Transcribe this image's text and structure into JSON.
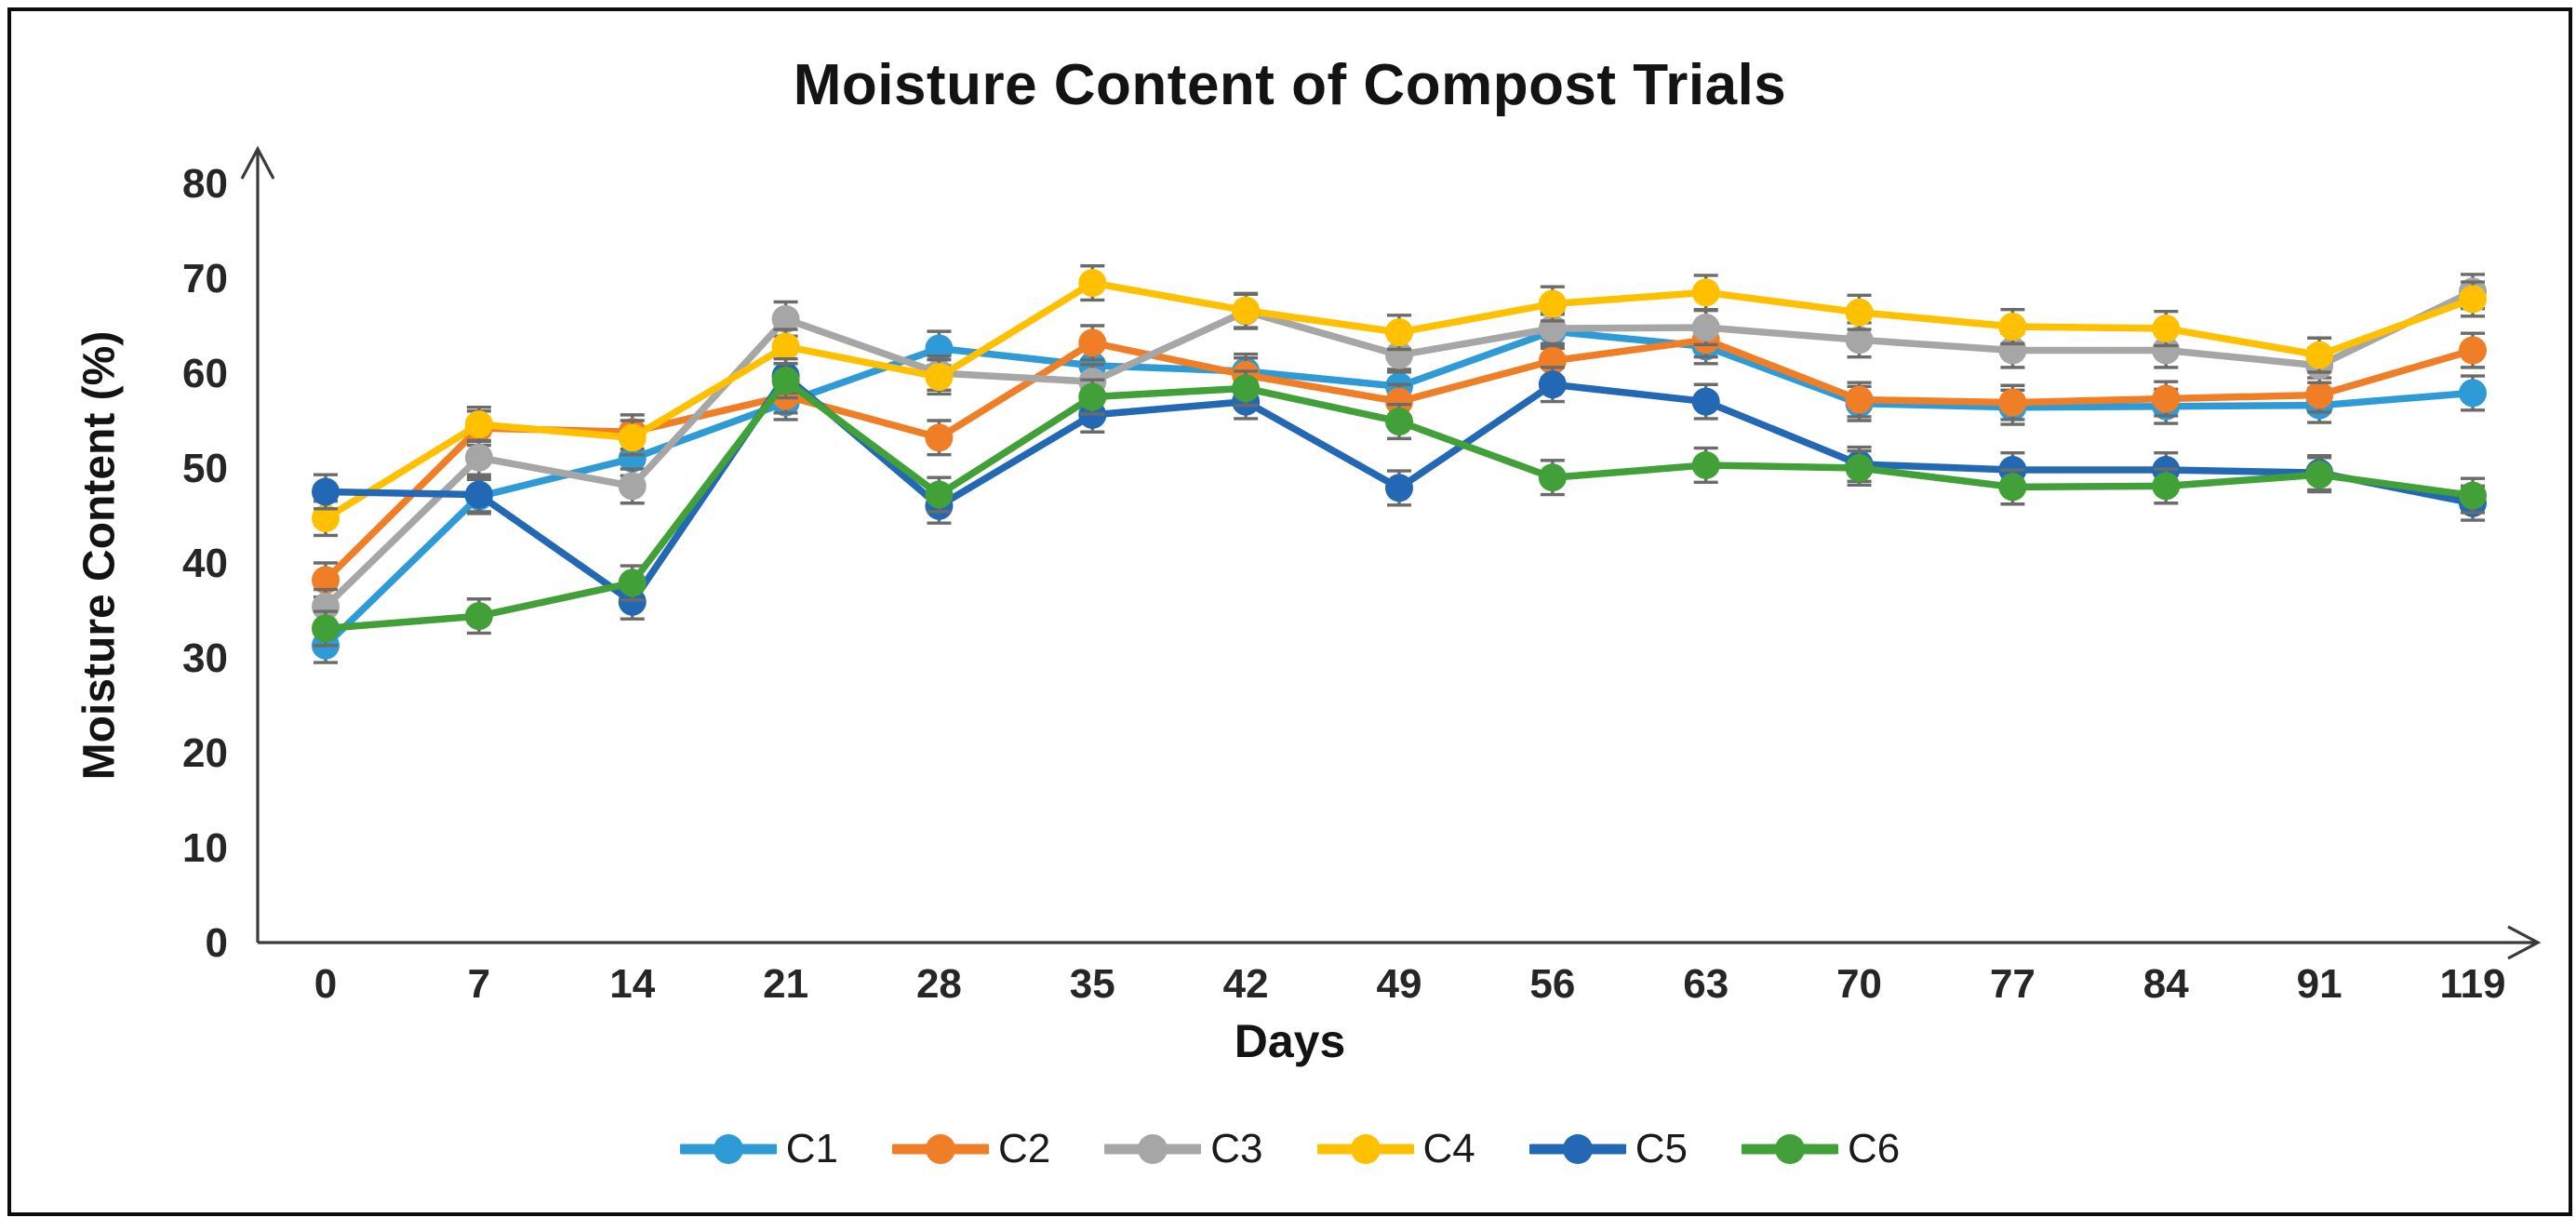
{
  "chart_data": {
    "type": "line",
    "title": "Moisture Content of Compost Trials",
    "xlabel": "Days",
    "ylabel": "Moisture Content (%)",
    "categories": [
      "0",
      "7",
      "14",
      "21",
      "28",
      "35",
      "42",
      "49",
      "56",
      "63",
      "70",
      "77",
      "84",
      "91",
      "119"
    ],
    "y_ticks": [
      "0",
      "10",
      "20",
      "30",
      "40",
      "50",
      "60",
      "70",
      "80"
    ],
    "ylim": [
      0,
      80
    ],
    "grid": false,
    "legend_position": "bottom",
    "error_bar": 1.8,
    "marker": "circle",
    "series": [
      {
        "name": "C1",
        "color": "#2E9BD6",
        "values": [
          31.3,
          47.0,
          51.0,
          56.9,
          62.6,
          60.8,
          60.2,
          58.6,
          64.4,
          62.8,
          56.8,
          56.4,
          56.5,
          56.6,
          57.9
        ]
      },
      {
        "name": "C2",
        "color": "#F07E27",
        "values": [
          38.2,
          54.2,
          53.8,
          57.6,
          53.2,
          63.2,
          59.8,
          57.0,
          61.3,
          63.5,
          57.2,
          56.9,
          57.3,
          57.7,
          62.4
        ]
      },
      {
        "name": "C3",
        "color": "#A6A6A6",
        "values": [
          35.4,
          51.1,
          48.1,
          65.7,
          60.0,
          59.1,
          66.5,
          61.9,
          64.7,
          64.8,
          63.5,
          62.4,
          62.4,
          60.8,
          68.6
        ]
      },
      {
        "name": "C4",
        "color": "#FFC000",
        "values": [
          44.7,
          54.6,
          53.2,
          62.8,
          59.6,
          69.5,
          66.6,
          64.3,
          67.3,
          68.5,
          66.4,
          64.9,
          64.7,
          61.9,
          67.8
        ]
      },
      {
        "name": "C5",
        "color": "#2368B5",
        "values": [
          47.5,
          47.2,
          35.9,
          59.7,
          46.0,
          55.6,
          57.0,
          47.9,
          58.8,
          57.0,
          50.4,
          49.8,
          49.8,
          49.5,
          46.3
        ]
      },
      {
        "name": "C6",
        "color": "#41A038",
        "values": [
          33.1,
          34.4,
          37.9,
          59.2,
          47.2,
          57.5,
          58.4,
          54.9,
          49.0,
          50.3,
          50.0,
          48.0,
          48.1,
          49.3,
          47.1
        ]
      }
    ],
    "axis_color": "#3a3a3a",
    "error_bar_color": "#6b6b6b"
  }
}
